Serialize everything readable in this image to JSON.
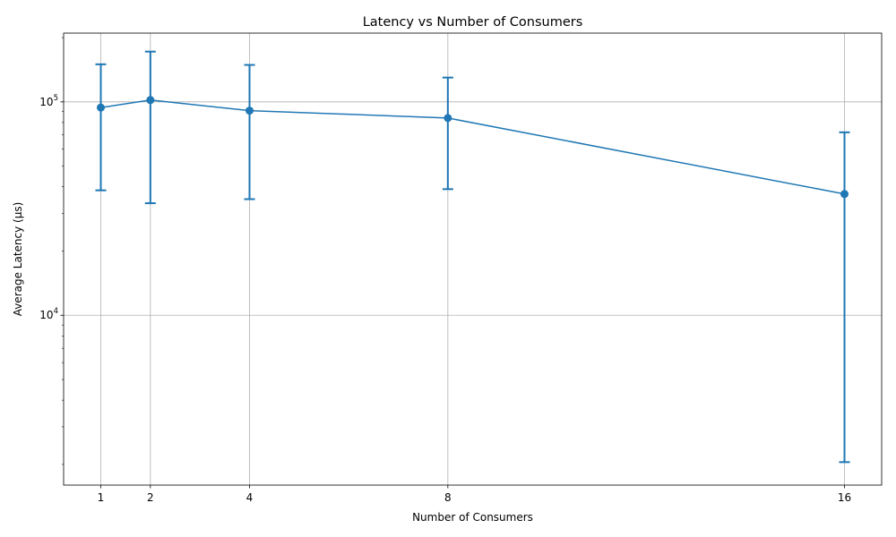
{
  "chart_data": {
    "type": "line",
    "title": "Latency vs Number of Consumers",
    "xlabel": "Number of Consumers",
    "ylabel": "Average Latency (µs)",
    "x": [
      1,
      2,
      4,
      8,
      16
    ],
    "xticks": [
      1,
      2,
      4,
      8,
      16
    ],
    "xlim": [
      0.25,
      16.75
    ],
    "yscale": "log",
    "ylim": [
      1600,
      210000
    ],
    "yticks": [
      {
        "value": 10000,
        "base": "10",
        "exp": "4"
      },
      {
        "value": 100000,
        "base": "10",
        "exp": "5"
      }
    ],
    "series": [
      {
        "values": [
          94000,
          102000,
          91000,
          84000,
          37000
        ],
        "err_low": [
          38500,
          33500,
          35000,
          39000,
          2050
        ],
        "err_high": [
          150000,
          172000,
          149000,
          130000,
          72000
        ],
        "marker": "circle",
        "color": "#1f77b4"
      }
    ],
    "grid": true,
    "legend": "none"
  }
}
